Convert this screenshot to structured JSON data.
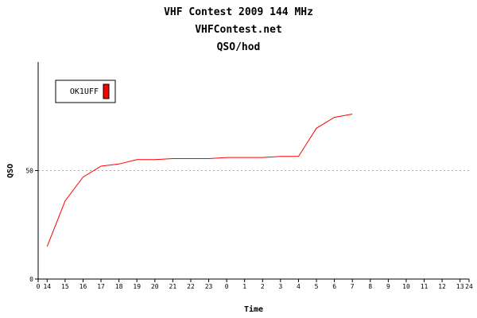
{
  "chart_data": {
    "type": "line",
    "title_lines": [
      "VHF Contest 2009 144 MHz",
      "VHFContest.net",
      "QSO/hod"
    ],
    "xlabel": "Time",
    "ylabel": "QSO",
    "x_tick_labels": [
      "0",
      "14",
      "15",
      "16",
      "17",
      "18",
      "19",
      "20",
      "21",
      "22",
      "23",
      "0",
      "1",
      "2",
      "3",
      "4",
      "5",
      "6",
      "7",
      "8",
      "9",
      "10",
      "11",
      "12",
      "13",
      "24"
    ],
    "x_tick_positions": [
      0,
      0.5,
      1.5,
      2.5,
      3.5,
      4.5,
      5.5,
      6.5,
      7.5,
      8.5,
      9.5,
      10.5,
      11.5,
      12.5,
      13.5,
      14.5,
      15.5,
      16.5,
      17.5,
      18.5,
      19.5,
      20.5,
      21.5,
      22.5,
      23.5,
      24
    ],
    "xlim": [
      0,
      24
    ],
    "ylim": [
      0,
      100
    ],
    "y_ticks": [
      0,
      50
    ],
    "y_gridlines": [
      50
    ],
    "series": [
      {
        "name": "OK1UFF",
        "color": "#ff0000",
        "x": [
          0.5,
          1.5,
          2.5,
          3.5,
          4.5,
          5.5,
          6.5,
          7.5,
          8.5,
          9.5,
          10.5,
          11.5,
          12.5,
          13.5,
          14.5,
          15.5,
          16.5,
          17.5
        ],
        "y": [
          15,
          36,
          47,
          52,
          53,
          55,
          55,
          55.5,
          55.5,
          55.5,
          56,
          56,
          56,
          56.5,
          56.5,
          69.5,
          74.5,
          76
        ]
      }
    ],
    "legend_position": "top-left"
  }
}
